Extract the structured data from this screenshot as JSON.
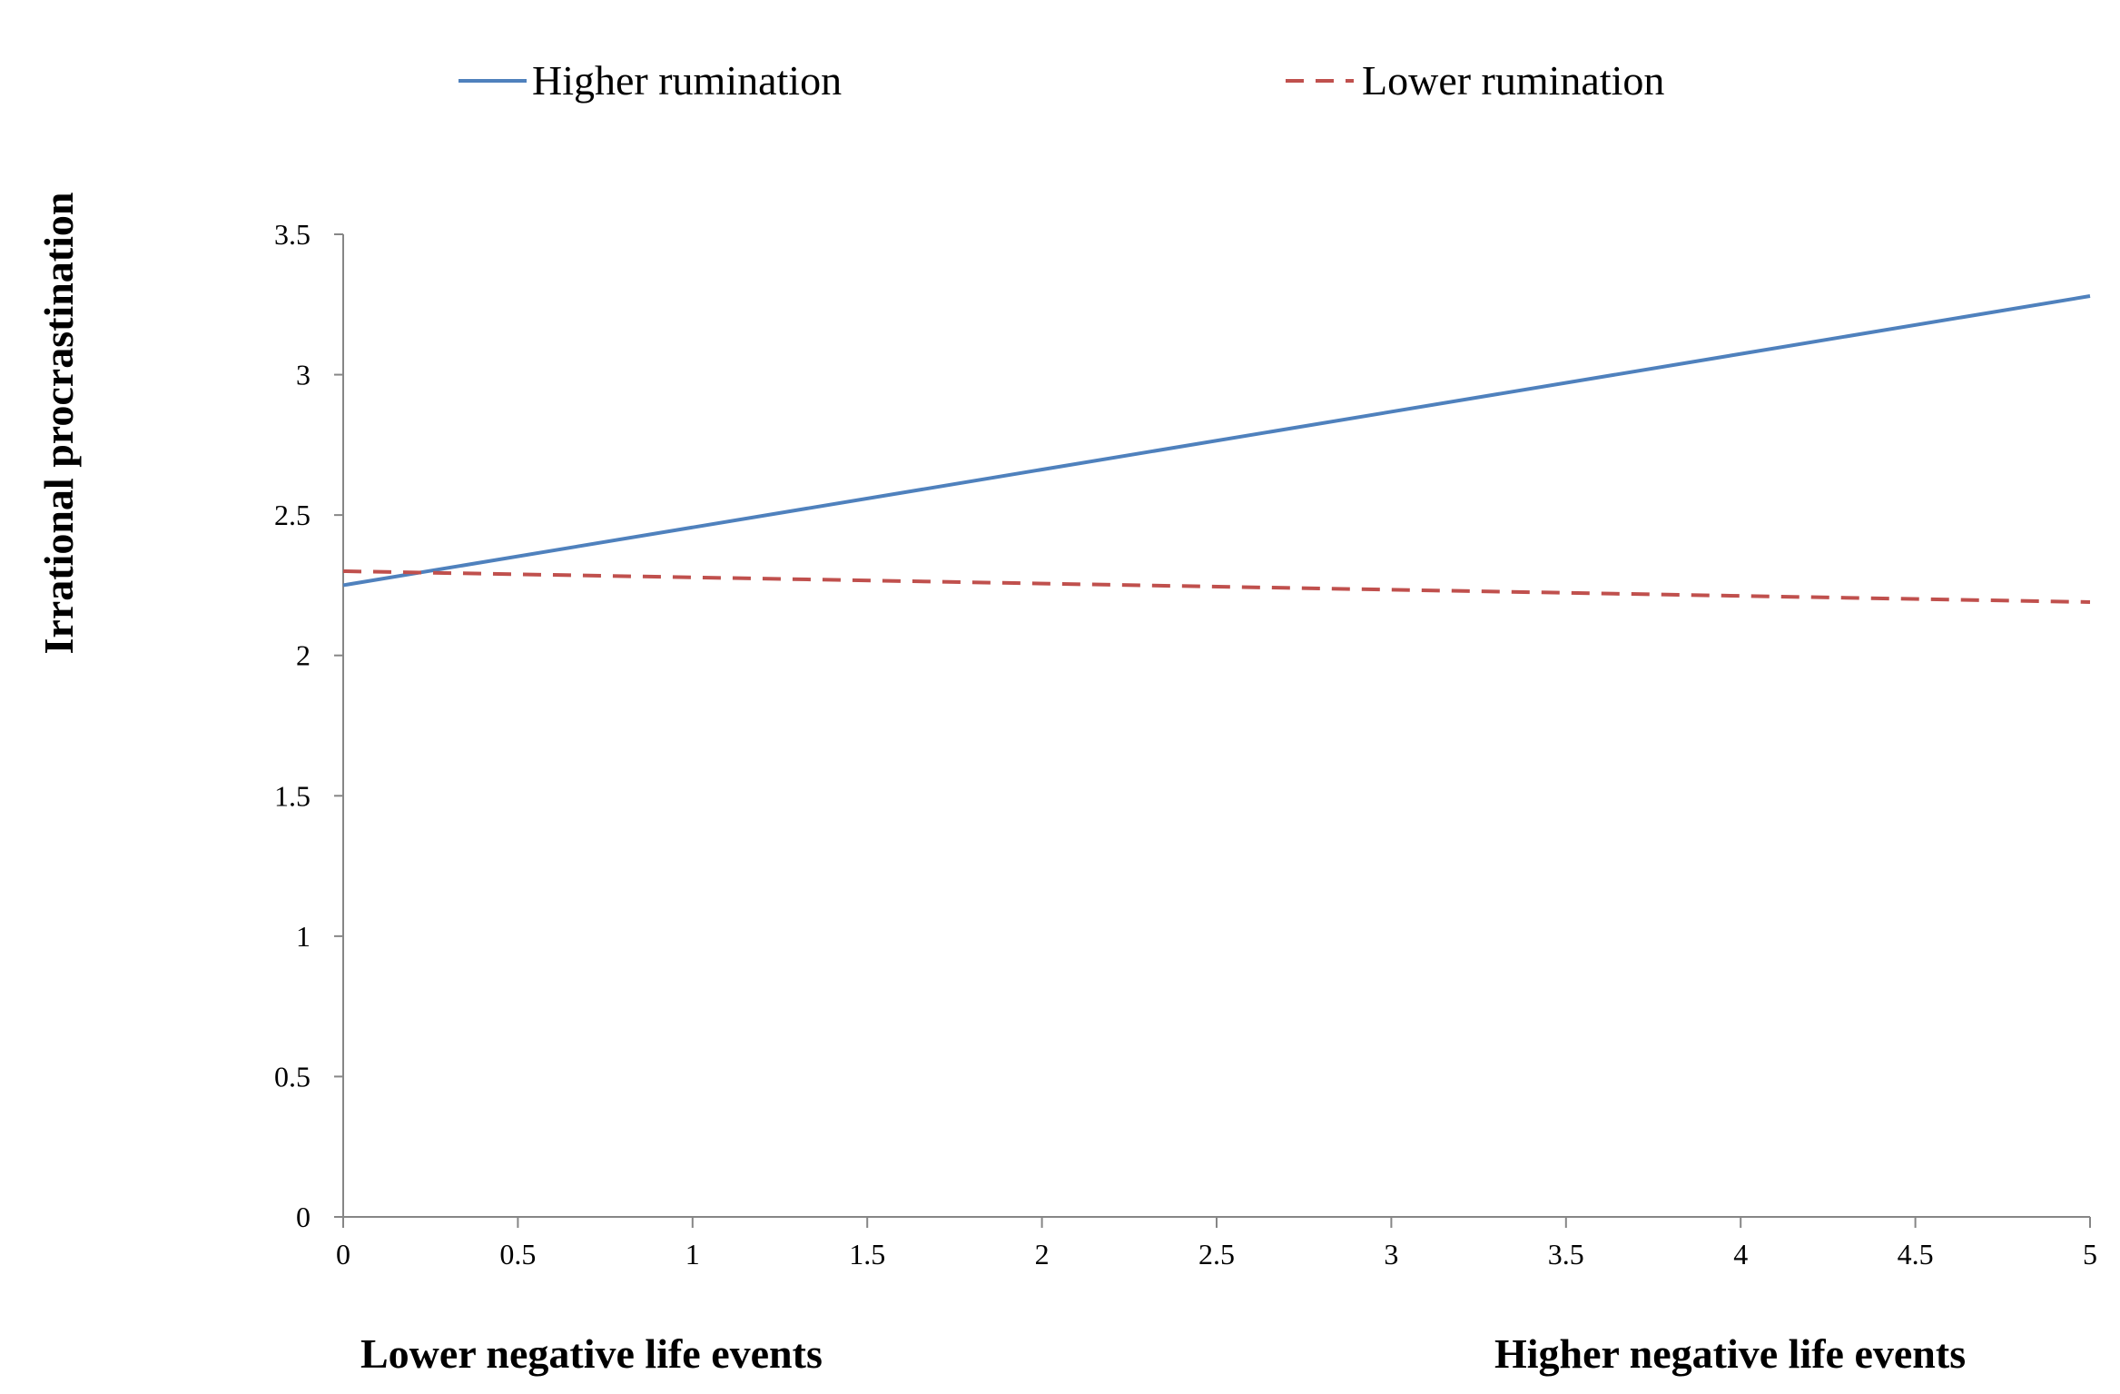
{
  "chart_data": {
    "type": "line",
    "ylabel": "Irrational procrastination",
    "x_annotations": {
      "left": "Lower negative life events",
      "right": "Higher negative life events"
    },
    "xlim": [
      0,
      5
    ],
    "ylim": [
      0,
      3.5
    ],
    "x_ticks": [
      0,
      0.5,
      1,
      1.5,
      2,
      2.5,
      3,
      3.5,
      4,
      4.5,
      5
    ],
    "x_tick_labels": [
      "0",
      "0.5",
      "1",
      "1.5",
      "2",
      "2.5",
      "3",
      "3.5",
      "4",
      "4.5",
      "5"
    ],
    "y_ticks": [
      0,
      0.5,
      1,
      1.5,
      2,
      2.5,
      3,
      3.5
    ],
    "y_tick_labels": [
      "0",
      "0.5",
      "1",
      "1.5",
      "2",
      "2.5",
      "3",
      "3.5"
    ],
    "grid": false,
    "legend_position": "top",
    "series": [
      {
        "name": "Higher rumination",
        "x": [
          0,
          5
        ],
        "y": [
          2.25,
          3.28
        ],
        "color": "#4f81bd",
        "style": "solid"
      },
      {
        "name": "Lower rumination",
        "x": [
          0,
          5
        ],
        "y": [
          2.3,
          2.19
        ],
        "color": "#c0504d",
        "style": "dashed"
      }
    ]
  }
}
